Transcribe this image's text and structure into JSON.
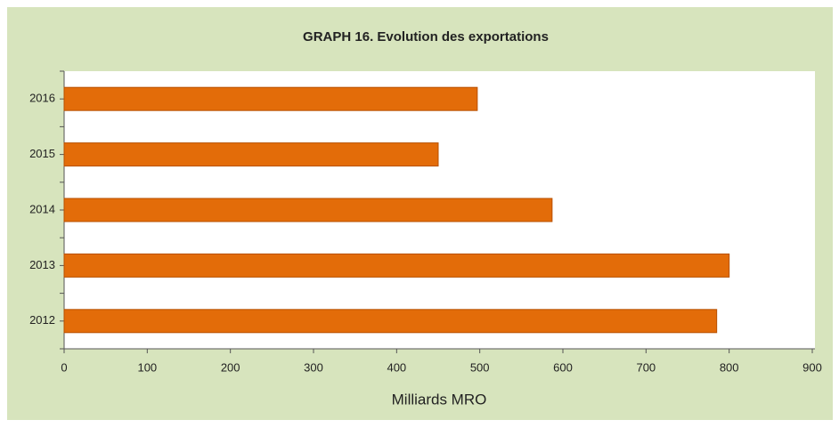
{
  "chart_data": {
    "type": "bar",
    "orientation": "horizontal",
    "title": "GRAPH 16. Evolution des exportations",
    "x_label": "Milliards MRO",
    "categories": [
      "2012",
      "2013",
      "2014",
      "2015",
      "2016"
    ],
    "values": [
      785,
      800,
      587,
      450,
      497
    ],
    "color": "#e36c09",
    "xlim": [
      0,
      900
    ],
    "xticks": [
      0,
      100,
      200,
      300,
      400,
      500,
      600,
      700,
      800,
      900
    ],
    "grid": false
  }
}
